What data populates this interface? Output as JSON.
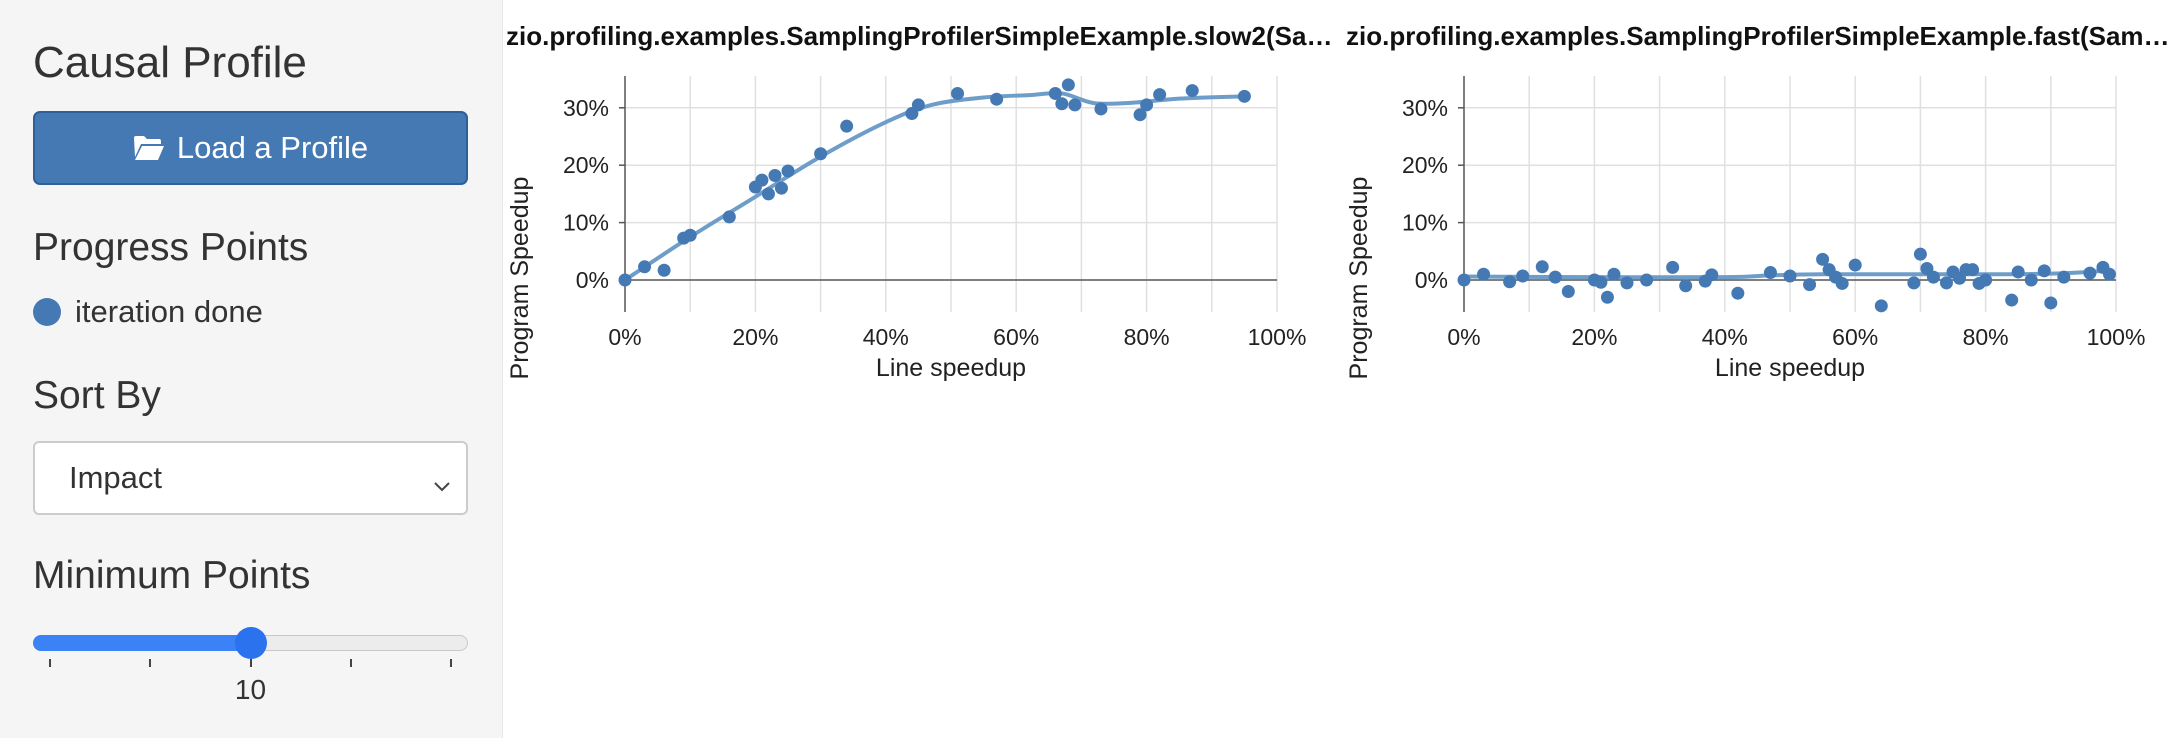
{
  "sidebar": {
    "title": "Causal Profile",
    "load_button_label": "Load a Profile",
    "progress_points_heading": "Progress Points",
    "progress_points": [
      {
        "label": "iteration done",
        "color": "#4479b4"
      }
    ],
    "sort_heading": "Sort By",
    "sort_selected": "Impact",
    "min_points_heading": "Minimum Points",
    "min_points_value": "10",
    "min_points_fraction": 0.5
  },
  "colors": {
    "accent": "#4479b4",
    "slider_accent": "#2a72ee",
    "sidebar_bg": "#f5f5f5"
  },
  "icons": {
    "load_button": "folder-open-icon",
    "select": "chevron-down-icon"
  },
  "chart_data": [
    {
      "type": "scatter",
      "title": "zio.profiling.examples.SamplingProfilerSimpleExample.slow2(Sa…",
      "xlabel": "Line speedup",
      "ylabel": "Program Speedup",
      "xlim": [
        0,
        100
      ],
      "ylim": [
        0,
        35
      ],
      "xticks": [
        "0%",
        "20%",
        "40%",
        "60%",
        "80%",
        "100%"
      ],
      "yticks": [
        "0%",
        "10%",
        "20%",
        "30%"
      ],
      "grid": true,
      "series": [
        {
          "color": "#4479b4",
          "points": [
            [
              0,
              0
            ],
            [
              3,
              2.3
            ],
            [
              6,
              1.7
            ],
            [
              9,
              7.3
            ],
            [
              10,
              7.8
            ],
            [
              16,
              11
            ],
            [
              20,
              16.2
            ],
            [
              21,
              17.4
            ],
            [
              22,
              15
            ],
            [
              23,
              18.2
            ],
            [
              24,
              16
            ],
            [
              25,
              19
            ],
            [
              30,
              22
            ],
            [
              34,
              26.8
            ],
            [
              44,
              29
            ],
            [
              45,
              30.5
            ],
            [
              51,
              32.5
            ],
            [
              57,
              31.5
            ],
            [
              66,
              32.5
            ],
            [
              67,
              30.7
            ],
            [
              68,
              34
            ],
            [
              69,
              30.5
            ],
            [
              73,
              29.8
            ],
            [
              79,
              28.8
            ],
            [
              80,
              30.5
            ],
            [
              82,
              32.3
            ],
            [
              87,
              33
            ],
            [
              95,
              32
            ]
          ],
          "trend": [
            [
              0,
              0
            ],
            [
              10,
              7.5
            ],
            [
              20,
              14.5
            ],
            [
              30,
              21.5
            ],
            [
              40,
              27.5
            ],
            [
              47,
              30.5
            ],
            [
              55,
              31.8
            ],
            [
              62,
              32.2
            ],
            [
              67,
              32.5
            ],
            [
              72,
              30.8
            ],
            [
              78,
              30.9
            ],
            [
              85,
              31.6
            ],
            [
              95,
              32
            ]
          ]
        }
      ]
    },
    {
      "type": "scatter",
      "title": "zio.profiling.examples.SamplingProfilerSimpleExample.fast(Sam…",
      "xlabel": "Line speedup",
      "ylabel": "Program Speedup",
      "xlim": [
        0,
        100
      ],
      "ylim": [
        -5,
        35
      ],
      "xticks": [
        "0%",
        "20%",
        "40%",
        "60%",
        "80%",
        "100%"
      ],
      "yticks": [
        "0%",
        "10%",
        "20%",
        "30%"
      ],
      "grid": true,
      "series": [
        {
          "color": "#4479b4",
          "points": [
            [
              0,
              0
            ],
            [
              3,
              1
            ],
            [
              7,
              -0.3
            ],
            [
              9,
              0.7
            ],
            [
              12,
              2.3
            ],
            [
              14,
              0.5
            ],
            [
              16,
              -2
            ],
            [
              20,
              0
            ],
            [
              21,
              -0.4
            ],
            [
              22,
              -3
            ],
            [
              23,
              1
            ],
            [
              25,
              -0.5
            ],
            [
              28,
              0
            ],
            [
              32,
              2.2
            ],
            [
              34,
              -1
            ],
            [
              37,
              -0.2
            ],
            [
              38,
              0.9
            ],
            [
              42,
              -2.3
            ],
            [
              47,
              1.3
            ],
            [
              50,
              0.7
            ],
            [
              53,
              -0.8
            ],
            [
              55,
              3.6
            ],
            [
              56,
              1.8
            ],
            [
              57,
              0.5
            ],
            [
              58,
              -0.6
            ],
            [
              60,
              2.6
            ],
            [
              64,
              -4.5
            ],
            [
              69,
              -0.5
            ],
            [
              70,
              4.5
            ],
            [
              71,
              2
            ],
            [
              72,
              0.5
            ],
            [
              74,
              -0.5
            ],
            [
              75,
              1.4
            ],
            [
              76,
              0.3
            ],
            [
              77,
              1.8
            ],
            [
              78,
              1.8
            ],
            [
              79,
              -0.6
            ],
            [
              80,
              0
            ],
            [
              84,
              -3.5
            ],
            [
              85,
              1.4
            ],
            [
              87,
              0
            ],
            [
              89,
              1.6
            ],
            [
              90,
              -4
            ],
            [
              92,
              0.5
            ],
            [
              96,
              1.2
            ],
            [
              98,
              2.2
            ],
            [
              99,
              1
            ]
          ],
          "trend": [
            [
              0,
              0.6
            ],
            [
              20,
              0.5
            ],
            [
              40,
              0.5
            ],
            [
              47,
              0.8
            ],
            [
              55,
              1
            ],
            [
              70,
              1
            ],
            [
              80,
              1
            ],
            [
              90,
              1.1
            ],
            [
              97,
              1.5
            ],
            [
              99,
              1.8
            ]
          ]
        }
      ]
    }
  ]
}
